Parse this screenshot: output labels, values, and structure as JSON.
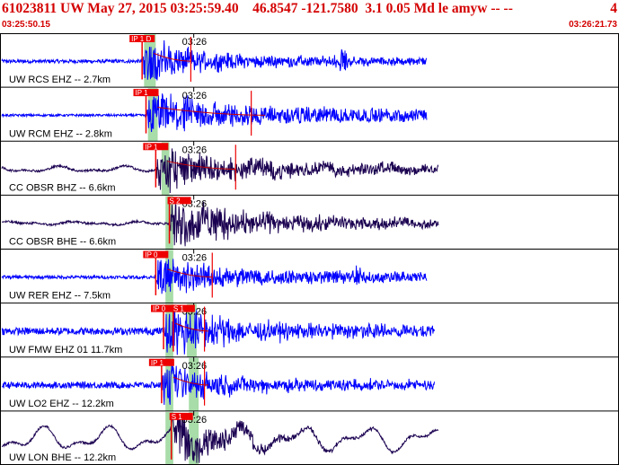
{
  "header": {
    "title": "61023811 UW May 27, 2015 03:25:59.40    46.8547 -121.7580  3.1 0.05 Md le amyw -- --",
    "channel": "4",
    "start_time": "03:25:50.15",
    "end_time": "03:26:21.73"
  },
  "colors": {
    "header_text": "#d40000",
    "trace_blue": "#0000ff",
    "trace_dark": "#1a0050",
    "pick_red": "#ee0000",
    "window_green": "#a8dca8",
    "amp_line": "#cc0000"
  },
  "chart_data": {
    "type": "line",
    "x_range": [
      0,
      31.58
    ],
    "minute_mark_label": "03:26",
    "minute_mark_x": 9.85,
    "traces": [
      {
        "label": "UW RCS EHZ -- 2.7km",
        "color": "blue",
        "end": 21.8,
        "p": 7.2,
        "p_label": "IP 1 D",
        "windows": [
          [
            7.3,
            7.9
          ]
        ],
        "amp_end": 9.7,
        "amp_mark": 9.7,
        "s": null,
        "s_label": "",
        "coda": 0.3,
        "noise": 0.08,
        "bursts": [
          [
            17.5,
            0.5,
            0.45
          ]
        ],
        "env": 2.6,
        "swave": 0.0,
        "swell": 0.0
      },
      {
        "label": "UW RCM EHZ -- 2.8km",
        "color": "blue",
        "end": 21.8,
        "p": 7.4,
        "p_label": "IP 1",
        "windows": [
          [
            7.5,
            8.0
          ]
        ],
        "amp_end": 13.5,
        "amp_mark": 12.8,
        "s": null,
        "s_label": "",
        "coda": 0.55,
        "noise": 0.05,
        "bursts": [],
        "env": 2.8,
        "swave": 0.0,
        "swell": 0.0
      },
      {
        "label": "CC OBSR BHZ -- 6.6km",
        "color": "dark",
        "end": 22.4,
        "p": 7.9,
        "p_label": "IP 1",
        "windows": [
          [
            8.2,
            8.6
          ]
        ],
        "amp_end": 12.0,
        "amp_mark": 12.0,
        "s": null,
        "s_label": "",
        "coda": 0.4,
        "noise": 0.05,
        "bursts": [],
        "env": 3.2,
        "swave": 0.0,
        "swell": 0.18
      },
      {
        "label": "CC OBSR BHE -- 6.6km",
        "color": "dark",
        "end": 22.4,
        "p": null,
        "p_label": "",
        "windows": [
          [
            8.4,
            8.8
          ]
        ],
        "amp_end": null,
        "amp_mark": null,
        "s": 8.6,
        "s_label": "S 2",
        "coda": 0.35,
        "noise": 0.05,
        "bursts": [],
        "env": 4.0,
        "swave": 0.45,
        "swell": 0.1
      },
      {
        "label": "UW RER EHZ -- 7.5km",
        "color": "blue",
        "end": 21.8,
        "p": 7.9,
        "p_label": "IP 0",
        "windows": [
          [
            8.4,
            8.8
          ]
        ],
        "amp_end": 10.8,
        "amp_mark": 10.8,
        "s": null,
        "s_label": "",
        "coda": 0.4,
        "noise": 0.07,
        "bursts": [
          [
            18.2,
            0.4,
            0.4
          ]
        ],
        "env": 2.4,
        "swave": 0.0,
        "swell": 0.0
      },
      {
        "label": "UW FMW EHZ 01 11.7km",
        "color": "blue",
        "end": 22.2,
        "p": 8.3,
        "p_label": "IP 0",
        "windows": [
          [
            8.4,
            8.8
          ],
          [
            9.5,
            10.0
          ]
        ],
        "amp_end": 10.6,
        "amp_mark": 10.4,
        "s": 8.8,
        "s_label": "S 1",
        "coda": 0.35,
        "noise": 0.16,
        "bursts": [],
        "env": 3.0,
        "swave": 0.6,
        "swell": 0.0
      },
      {
        "label": "UW LO2 EHZ -- 12.2km",
        "color": "blue",
        "end": 22.2,
        "p": 8.2,
        "p_label": "IP 1",
        "windows": [
          [
            8.4,
            8.8
          ],
          [
            9.6,
            10.1
          ]
        ],
        "amp_end": 10.6,
        "amp_mark": 10.4,
        "s": null,
        "s_label": "",
        "coda": 0.3,
        "noise": 0.14,
        "bursts": [],
        "env": 2.6,
        "swave": 0.5,
        "swell": 0.0
      },
      {
        "label": "UW LON BHE -- 12.2km",
        "color": "dark",
        "end": 22.4,
        "p": null,
        "p_label": "",
        "windows": [
          [
            8.4,
            8.8
          ],
          [
            9.6,
            10.1
          ]
        ],
        "amp_end": null,
        "amp_mark": null,
        "s": 8.7,
        "s_label": "S 1",
        "coda": 0.0,
        "noise": 0.05,
        "bursts": [],
        "env": 3.0,
        "swave": 0.55,
        "swell": 0.75
      }
    ]
  }
}
